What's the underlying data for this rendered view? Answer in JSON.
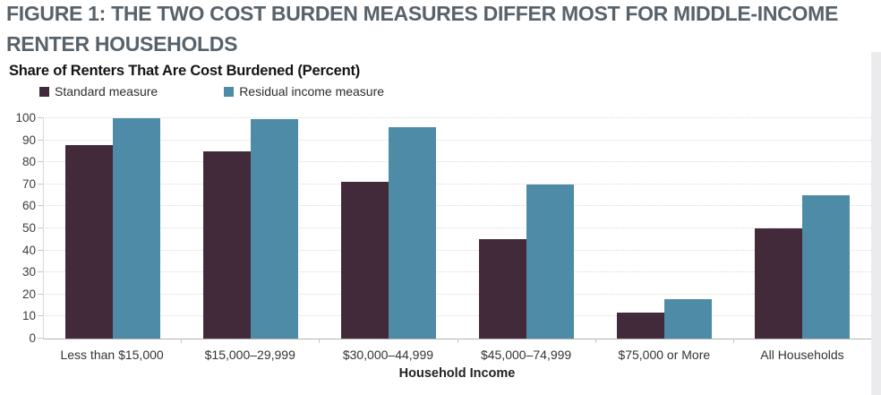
{
  "figure": {
    "title_line1": "FIGURE 1: THE TWO COST BURDEN MEASURES DIFFER MOST FOR MIDDLE-INCOME",
    "title_line2": "RENTER HOUSEHOLDS"
  },
  "chart_data": {
    "type": "bar",
    "title": "Share of Renters That Are Cost Burdened (Percent)",
    "xlabel": "Household Income",
    "ylabel": "",
    "ylim": [
      0,
      100
    ],
    "ytick_step": 10,
    "grid": "horizontal-dotted",
    "legend_position": "top-left",
    "categories": [
      "Less than $15,000",
      "$15,000–29,999",
      "$30,000–44,999",
      "$45,000–74,999",
      "$75,000 or More",
      "All Households"
    ],
    "series": [
      {
        "name": "Standard measure",
        "color": "#432a3b",
        "values": [
          88,
          85,
          71,
          45,
          12,
          50
        ]
      },
      {
        "name": "Residual income measure",
        "color": "#4e8ba6",
        "values": [
          100,
          99.5,
          96,
          70,
          18,
          65
        ]
      }
    ]
  },
  "colors": {
    "figure_title": "#58626b",
    "gridline": "#d9d9d9",
    "axis_line": "#b3b3b3",
    "tick_mark": "#c6c6c6",
    "page_edge_strip": "#ebebed"
  }
}
